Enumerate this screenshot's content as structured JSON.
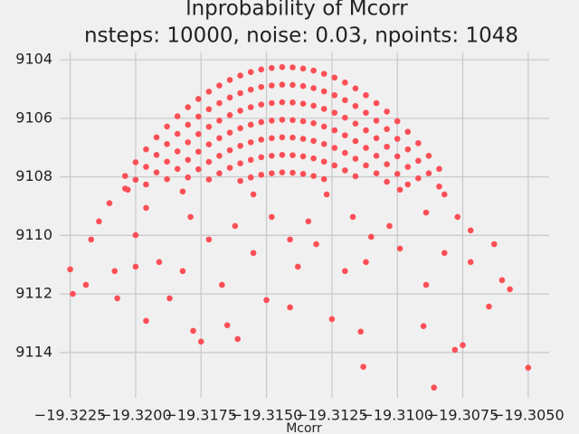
{
  "chart_data": {
    "type": "scatter",
    "title": "lnprobability of Mcorr",
    "subtitle": "nsteps: 10000, noise: 0.03, npoints: 1048",
    "x_label": "Mcorr",
    "color": "#fc4f56",
    "grid": true,
    "xlim": [
      -19.3229,
      -19.3042
    ],
    "ylim": [
      -9115.55,
      -9103.75
    ],
    "xticks": [
      {
        "value": -19.3225,
        "label": "−19.3225"
      },
      {
        "value": -19.32,
        "label": "−19.3200"
      },
      {
        "value": -19.3175,
        "label": "−19.3175"
      },
      {
        "value": -19.315,
        "label": "−19.3150"
      },
      {
        "value": -19.3125,
        "label": "−19.3125"
      },
      {
        "value": -19.31,
        "label": "−19.3100"
      },
      {
        "value": -19.3075,
        "label": "−19.3075"
      },
      {
        "value": -19.305,
        "label": "−19.3050"
      }
    ],
    "yticks": [
      {
        "value": -9104,
        "label": "9104"
      },
      {
        "value": -9106,
        "label": "9106"
      },
      {
        "value": -9108,
        "label": "9108"
      },
      {
        "value": -9110,
        "label": "9110"
      },
      {
        "value": -9112,
        "label": "9112"
      },
      {
        "value": -9114,
        "label": "9114"
      }
    ],
    "x": [
      -19.3204,
      -19.3204,
      -19.32,
      -19.32,
      -19.3196,
      -19.3196,
      -19.3196,
      -19.3192,
      -19.3192,
      -19.3192,
      -19.3188,
      -19.3188,
      -19.3188,
      -19.3188,
      -19.3184,
      -19.3184,
      -19.3184,
      -19.3184,
      -19.318,
      -19.318,
      -19.318,
      -19.318,
      -19.318,
      -19.3176,
      -19.3176,
      -19.3176,
      -19.3176,
      -19.3176,
      -19.3172,
      -19.3172,
      -19.3172,
      -19.3172,
      -19.3172,
      -19.3172,
      -19.3168,
      -19.3168,
      -19.3168,
      -19.3168,
      -19.3168,
      -19.3168,
      -19.3164,
      -19.3164,
      -19.3164,
      -19.3164,
      -19.3164,
      -19.3164,
      -19.316,
      -19.316,
      -19.316,
      -19.316,
      -19.316,
      -19.316,
      -19.316,
      -19.3156,
      -19.3156,
      -19.3156,
      -19.3156,
      -19.3156,
      -19.3156,
      -19.3156,
      -19.3152,
      -19.3152,
      -19.3152,
      -19.3152,
      -19.3152,
      -19.3152,
      -19.3152,
      -19.3148,
      -19.3148,
      -19.3148,
      -19.3148,
      -19.3148,
      -19.3148,
      -19.3148,
      -19.3144,
      -19.3144,
      -19.3144,
      -19.3144,
      -19.3144,
      -19.3144,
      -19.3144,
      -19.314,
      -19.314,
      -19.314,
      -19.314,
      -19.314,
      -19.314,
      -19.314,
      -19.3136,
      -19.3136,
      -19.3136,
      -19.3136,
      -19.3136,
      -19.3136,
      -19.3136,
      -19.3132,
      -19.3132,
      -19.3132,
      -19.3132,
      -19.3132,
      -19.3132,
      -19.3132,
      -19.3128,
      -19.3128,
      -19.3128,
      -19.3128,
      -19.3128,
      -19.3128,
      -19.3128,
      -19.3124,
      -19.3124,
      -19.3124,
      -19.3124,
      -19.3124,
      -19.3124,
      -19.312,
      -19.312,
      -19.312,
      -19.312,
      -19.312,
      -19.312,
      -19.3116,
      -19.3116,
      -19.3116,
      -19.3116,
      -19.3116,
      -19.3116,
      -19.3112,
      -19.3112,
      -19.3112,
      -19.3112,
      -19.3112,
      -19.3108,
      -19.3108,
      -19.3108,
      -19.3108,
      -19.3108,
      -19.3104,
      -19.3104,
      -19.3104,
      -19.3104,
      -19.3104,
      -19.31,
      -19.31,
      -19.31,
      -19.31,
      -19.3096,
      -19.3096,
      -19.3096,
      -19.3096,
      -19.3092,
      -19.3092,
      -19.3092,
      -19.3088,
      -19.3088,
      -19.3084,
      -19.3084,
      -19.3225,
      -19.3224,
      -19.3207,
      -19.3196,
      -19.3187,
      -19.3178,
      -19.3175,
      -19.3165,
      -19.3161,
      -19.315,
      -19.3141,
      -19.3125,
      -19.3114,
      -19.3113,
      -19.3086,
      -19.309,
      -19.3078,
      -19.3075,
      -19.3065,
      -19.305,
      -19.3057,
      -19.3219,
      -19.3217,
      -19.3214,
      -19.3208,
      -19.32,
      -19.3191,
      -19.3182,
      -19.3167,
      -19.3155,
      -19.3138,
      -19.3131,
      -19.312,
      -19.3112,
      -19.3099,
      -19.3089,
      -19.3082,
      -19.3072,
      -19.3063,
      -19.306,
      -19.321,
      -19.3196,
      -19.3179,
      -19.3162,
      -19.3148,
      -19.3134,
      -19.3117,
      -19.3103,
      -19.3089,
      -19.3077,
      -19.32,
      -19.3172,
      -19.3141,
      -19.311,
      -19.3072,
      -19.3203,
      -19.3182,
      -19.3155,
      -19.3127,
      -19.3099,
      -19.3082
    ],
    "values": [
      -9107.97,
      -9108.4,
      -9107.5,
      -9108.1,
      -9107.06,
      -9107.66,
      -9108.26,
      -9106.65,
      -9107.25,
      -9107.85,
      -9106.28,
      -9106.88,
      -9107.48,
      -9108.08,
      -9105.93,
      -9106.53,
      -9107.13,
      -9107.73,
      -9105.62,
      -9106.22,
      -9106.82,
      -9107.42,
      -9108.02,
      -9105.34,
      -9105.94,
      -9106.54,
      -9107.14,
      -9107.74,
      -9105.09,
      -9105.69,
      -9106.29,
      -9106.89,
      -9107.49,
      -9108.09,
      -9104.88,
      -9105.48,
      -9106.08,
      -9106.68,
      -9107.28,
      -9107.88,
      -9104.69,
      -9105.29,
      -9105.89,
      -9106.49,
      -9107.09,
      -9107.69,
      -9104.54,
      -9105.14,
      -9105.74,
      -9106.34,
      -9106.94,
      -9107.54,
      -9108.14,
      -9104.42,
      -9105.02,
      -9105.62,
      -9106.22,
      -9106.82,
      -9107.42,
      -9108.02,
      -9104.33,
      -9104.93,
      -9105.53,
      -9106.13,
      -9106.73,
      -9107.33,
      -9107.93,
      -9104.28,
      -9104.88,
      -9105.48,
      -9106.08,
      -9106.68,
      -9107.28,
      -9107.88,
      -9104.25,
      -9104.85,
      -9105.45,
      -9106.05,
      -9106.65,
      -9107.25,
      -9107.85,
      -9104.26,
      -9104.86,
      -9105.46,
      -9106.06,
      -9106.66,
      -9107.26,
      -9107.86,
      -9104.3,
      -9104.9,
      -9105.5,
      -9106.1,
      -9106.7,
      -9107.3,
      -9107.9,
      -9104.37,
      -9104.97,
      -9105.57,
      -9106.17,
      -9106.77,
      -9107.37,
      -9107.97,
      -9104.48,
      -9105.08,
      -9105.68,
      -9106.28,
      -9106.88,
      -9107.48,
      -9108.08,
      -9104.61,
      -9105.21,
      -9105.81,
      -9106.41,
      -9107.01,
      -9107.61,
      -9104.78,
      -9105.38,
      -9105.98,
      -9106.58,
      -9107.18,
      -9107.78,
      -9104.98,
      -9105.58,
      -9106.18,
      -9106.78,
      -9107.38,
      -9107.98,
      -9105.21,
      -9105.81,
      -9106.41,
      -9107.01,
      -9107.61,
      -9105.48,
      -9106.08,
      -9106.68,
      -9107.28,
      -9107.88,
      -9105.77,
      -9106.37,
      -9106.97,
      -9107.57,
      -9108.17,
      -9106.1,
      -9106.7,
      -9107.3,
      -9107.9,
      -9106.46,
      -9107.06,
      -9107.66,
      -9108.26,
      -9106.85,
      -9107.45,
      -9108.05,
      -9107.28,
      -9107.88,
      -9107.73,
      -9108.33,
      -9111.16,
      -9112.0,
      -9112.15,
      -9112.92,
      -9112.15,
      -9113.26,
      -9113.63,
      -9113.07,
      -9113.54,
      -9112.21,
      -9112.46,
      -9112.86,
      -9113.29,
      -9114.49,
      -9115.2,
      -9113.1,
      -9113.91,
      -9113.75,
      -9112.43,
      -9114.52,
      -9111.84,
      -9111.69,
      -9110.14,
      -9109.52,
      -9111.22,
      -9111.07,
      -9110.91,
      -9111.22,
      -9111.69,
      -9110.6,
      -9111.07,
      -9110.3,
      -9111.22,
      -9110.91,
      -9110.45,
      -9111.69,
      -9110.6,
      -9110.91,
      -9110.3,
      -9111.53,
      -9108.9,
      -9109.06,
      -9109.37,
      -9109.68,
      -9109.37,
      -9109.52,
      -9109.37,
      -9109.68,
      -9109.22,
      -9109.37,
      -9109.99,
      -9110.14,
      -9110.14,
      -9110.05,
      -9109.83,
      -9108.44,
      -9108.5,
      -9108.6,
      -9108.6,
      -9108.44,
      -9108.6
    ]
  }
}
